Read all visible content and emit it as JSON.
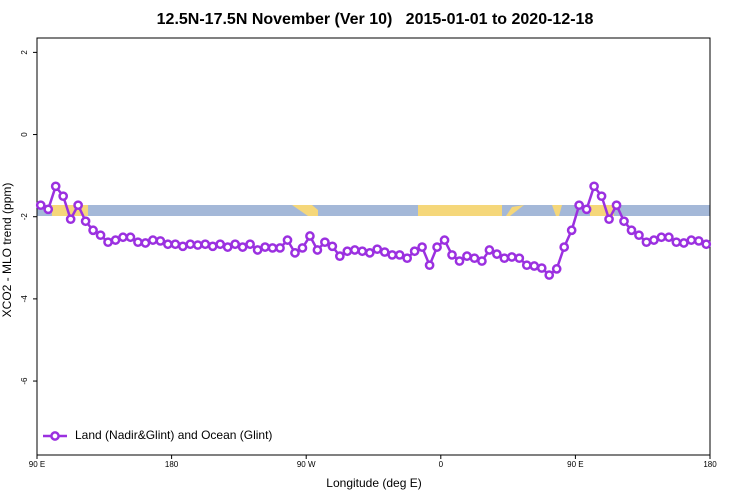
{
  "chart_data": {
    "type": "line",
    "title": "12.5N-17.5N November (Ver 10)   2015-01-01 to 2020-12-18",
    "x_label": "Longitude (deg E)",
    "y_label": "XCO2 - MLO trend (ppm)",
    "xlim": [
      90,
      540
    ],
    "xticks": [
      {
        "value": 90,
        "label": "90 E"
      },
      180,
      {
        "value": 270,
        "label": "90 W"
      },
      {
        "value": 360,
        "label": "0"
      },
      {
        "value": 450,
        "label": "90 E"
      },
      {
        "value": 540,
        "label": "180"
      }
    ],
    "ylim": [
      -7.8,
      2.35
    ],
    "yticks": [
      -6,
      -4,
      -2,
      0,
      2
    ],
    "grid": false,
    "legend": "bottom-left",
    "x": [
      92.5,
      97.5,
      102.5,
      107.5,
      112.5,
      117.5,
      122.5,
      127.5,
      132.5,
      137.5,
      142.5,
      147.5,
      152.5,
      157.5,
      162.5,
      167.5,
      172.5,
      177.5,
      182.5,
      187.5,
      192.5,
      197.5,
      202.5,
      207.5,
      212.5,
      217.5,
      222.5,
      227.5,
      232.5,
      237.5,
      242.5,
      247.5,
      252.5,
      257.5,
      262.5,
      267.5,
      272.5,
      277.5,
      282.5,
      287.5,
      292.5,
      297.5,
      302.5,
      307.5,
      312.5,
      317.5,
      322.5,
      327.5,
      332.5,
      337.5,
      342.5,
      347.5,
      352.5,
      357.5,
      362.5,
      367.5,
      372.5,
      377.5,
      382.5,
      387.5,
      392.5,
      397.5,
      402.5,
      407.5,
      412.5,
      417.5,
      422.5,
      427.5,
      432.5,
      437.5,
      442.5,
      447.5,
      452.5,
      457.5,
      462.5,
      467.5,
      472.5,
      477.5,
      482.5,
      487.5,
      492.5,
      497.5,
      502.5,
      507.5,
      512.5,
      517.5,
      522.5,
      527.5,
      532.5,
      537.5
    ],
    "series": [
      {
        "name": "Land (Nadir&Glint) and Ocean (Glint)",
        "color": "#9b30e0",
        "values": [
          -1.72,
          -1.82,
          -1.26,
          -1.5,
          -2.06,
          -1.72,
          -2.11,
          -2.33,
          -2.45,
          -2.62,
          -2.57,
          -2.5,
          -2.5,
          -2.62,
          -2.64,
          -2.57,
          -2.59,
          -2.67,
          -2.67,
          -2.72,
          -2.67,
          -2.69,
          -2.67,
          -2.72,
          -2.67,
          -2.74,
          -2.67,
          -2.74,
          -2.67,
          -2.81,
          -2.74,
          -2.76,
          -2.76,
          -2.57,
          -2.88,
          -2.76,
          -2.47,
          -2.81,
          -2.62,
          -2.72,
          -2.96,
          -2.84,
          -2.81,
          -2.84,
          -2.88,
          -2.79,
          -2.86,
          -2.93,
          -2.93,
          -3.01,
          -2.84,
          -2.74,
          -3.18,
          -2.74,
          -2.57,
          -2.93,
          -3.08,
          -2.96,
          -3.01,
          -3.08,
          -2.81,
          -2.91,
          -3.01,
          -2.98,
          -3.01,
          -3.18,
          -3.2,
          -3.25,
          -3.42,
          -3.27,
          -2.74,
          -2.33,
          -1.72,
          -1.82,
          -1.26,
          -1.5,
          -2.06,
          -1.72,
          -2.11,
          -2.33,
          -2.45,
          -2.62,
          -2.57,
          -2.5,
          -2.5,
          -2.62,
          -2.64,
          -2.57,
          -2.59,
          -2.67
        ]
      }
    ]
  }
}
